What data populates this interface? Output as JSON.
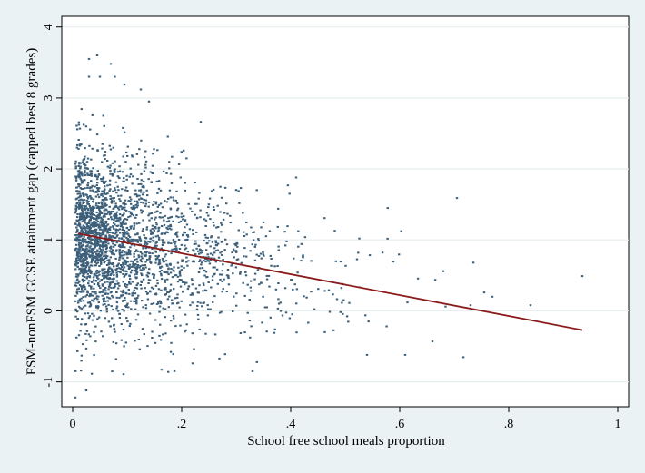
{
  "chart_data": {
    "type": "scatter",
    "title": "",
    "xlabel": "School free school meals proportion",
    "ylabel": "FSM-nonFSM GCSE attainment gap (capped best 8 grades)",
    "xlim": [
      -0.02,
      1.02
    ],
    "ylim": [
      -1.35,
      4.15
    ],
    "x_ticks": [
      {
        "value": 0,
        "label": "0"
      },
      {
        "value": 0.2,
        "label": ".2"
      },
      {
        "value": 0.4,
        "label": ".4"
      },
      {
        "value": 0.6,
        "label": ".6"
      },
      {
        "value": 0.8,
        "label": ".8"
      },
      {
        "value": 1,
        "label": "1"
      }
    ],
    "y_ticks": [
      {
        "value": -1,
        "label": "-1"
      },
      {
        "value": 0,
        "label": "0"
      },
      {
        "value": 1,
        "label": "1"
      },
      {
        "value": 2,
        "label": "2"
      },
      {
        "value": 3,
        "label": "3"
      },
      {
        "value": 4,
        "label": "4"
      }
    ],
    "grid": true,
    "fit_line": {
      "x": [
        0.01,
        0.935
      ],
      "y": [
        1.09,
        -0.27
      ],
      "color": "#8b1a1a"
    },
    "marker_color": "#3c5f7a",
    "scatter_seed": 12345,
    "scatter_n": 2600,
    "notable_points": [
      {
        "x": 0.045,
        "y": 3.6
      },
      {
        "x": 0.03,
        "y": 3.55
      },
      {
        "x": 0.07,
        "y": 3.48
      },
      {
        "x": 0.03,
        "y": 3.3
      },
      {
        "x": 0.05,
        "y": 3.3
      },
      {
        "x": 0.125,
        "y": 3.12
      },
      {
        "x": 0.095,
        "y": 3.19
      },
      {
        "x": 0.14,
        "y": 2.95
      },
      {
        "x": 0.41,
        "y": 1.88
      },
      {
        "x": 0.705,
        "y": 1.59
      },
      {
        "x": 0.935,
        "y": 0.49
      },
      {
        "x": 0.33,
        "y": -0.85
      },
      {
        "x": 0.22,
        "y": -0.74
      },
      {
        "x": 0.005,
        "y": -1.22
      },
      {
        "x": 0.025,
        "y": -1.12
      },
      {
        "x": 0.54,
        "y": -0.62
      },
      {
        "x": 0.61,
        "y": -0.62
      },
      {
        "x": 0.66,
        "y": -0.43
      },
      {
        "x": 0.84,
        "y": 0.08
      },
      {
        "x": 0.77,
        "y": 0.2
      },
      {
        "x": 0.755,
        "y": 0.26
      },
      {
        "x": 0.68,
        "y": 0.56
      },
      {
        "x": 0.73,
        "y": 0.08
      }
    ]
  }
}
